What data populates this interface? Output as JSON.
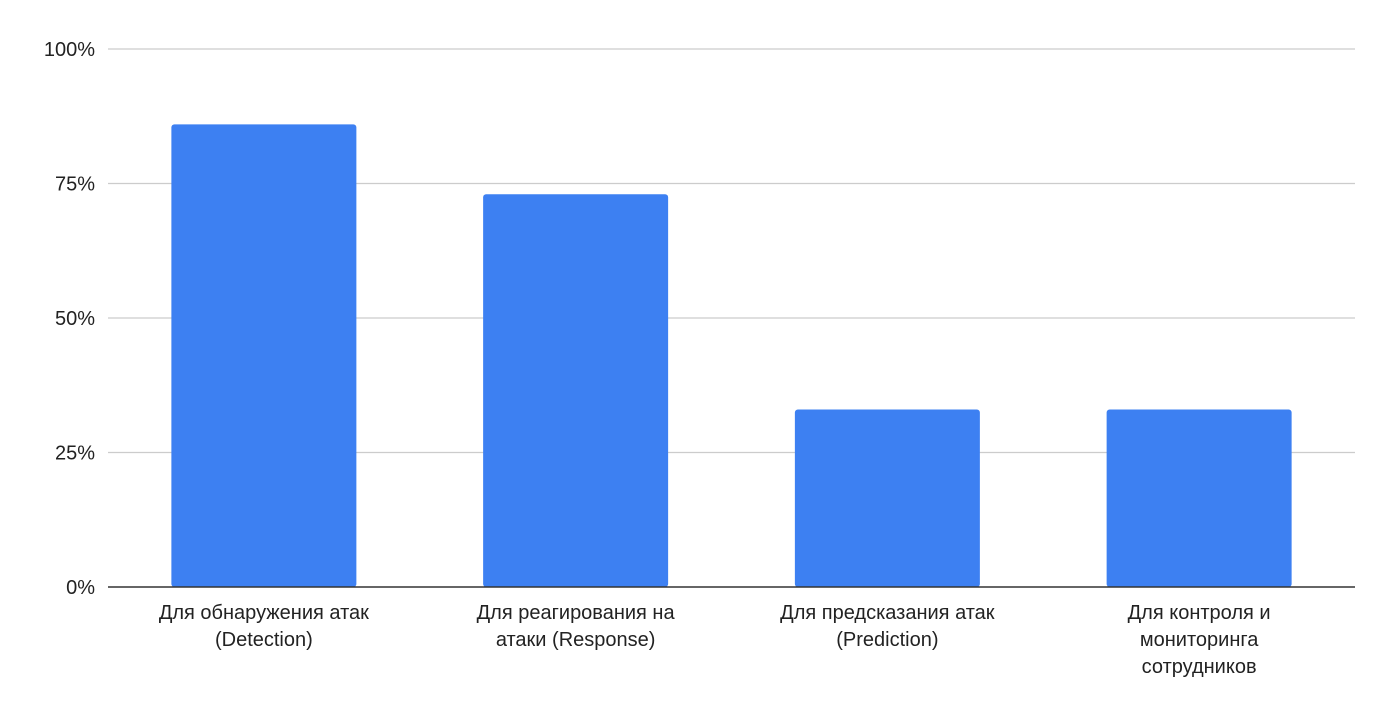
{
  "chart_data": {
    "type": "bar",
    "title": "",
    "xlabel": "",
    "ylabel": "",
    "categories": [
      [
        "Для обнаружения атак",
        "(Detection)"
      ],
      [
        "Для реагирования на",
        "атаки (Response)"
      ],
      [
        "Для предсказания атак",
        "(Prediction)"
      ],
      [
        "Для контроля и",
        "мониторинга",
        "сотрудников"
      ]
    ],
    "values": [
      86,
      73,
      33,
      33
    ],
    "ylim": [
      0,
      100
    ],
    "yticks": [
      0,
      25,
      50,
      75,
      100
    ],
    "ytick_labels": [
      "0%",
      "25%",
      "50%",
      "75%",
      "100%"
    ],
    "grid": true,
    "legend": "none",
    "bar_color": "#3d80f2",
    "grid_color": "#cccccc",
    "axis_color": "#333333"
  }
}
